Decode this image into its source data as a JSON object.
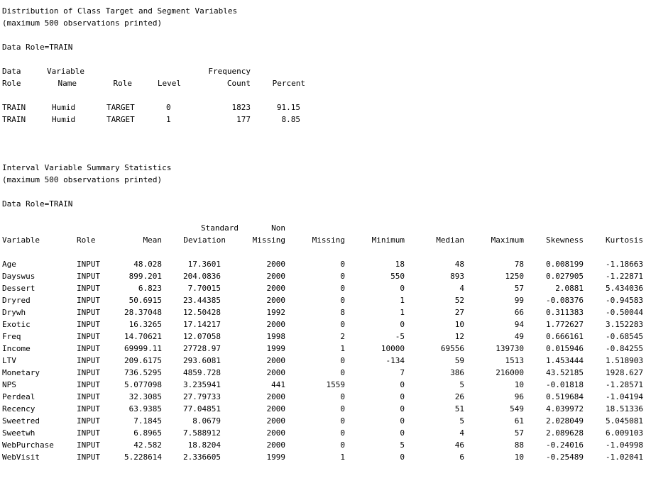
{
  "section1": {
    "title": "Distribution of Class Target and Segment Variables",
    "subtitle": "(maximum 500 observations printed)",
    "data_role": "Data Role=TRAIN",
    "headers_top": [
      "Data",
      "Variable",
      "Frequency"
    ],
    "headers": [
      "Role",
      "Name",
      "Role",
      "Level",
      "Count",
      "Percent"
    ],
    "rows": [
      [
        "TRAIN",
        "Humid",
        "TARGET",
        "0",
        "1823",
        "91.15"
      ],
      [
        "TRAIN",
        "Humid",
        "TARGET",
        "1",
        "177",
        "8.85"
      ]
    ]
  },
  "section2": {
    "title": "Interval Variable Summary Statistics",
    "subtitle": "(maximum 500 observations printed)",
    "data_role": "Data Role=TRAIN",
    "headers_top": [
      "Standard",
      "Non"
    ],
    "headers": [
      "Variable",
      "Role",
      "Mean",
      "Deviation",
      "Missing",
      "Missing",
      "Minimum",
      "Median",
      "Maximum",
      "Skewness",
      "Kurtosis"
    ],
    "rows": [
      [
        "Age",
        "INPUT",
        "48.028",
        "17.3601",
        "2000",
        "0",
        "18",
        "48",
        "78",
        "0.008199",
        "-1.18663"
      ],
      [
        "Dayswus",
        "INPUT",
        "899.201",
        "204.0836",
        "2000",
        "0",
        "550",
        "893",
        "1250",
        "0.027905",
        "-1.22871"
      ],
      [
        "Dessert",
        "INPUT",
        "6.823",
        "7.70015",
        "2000",
        "0",
        "0",
        "4",
        "57",
        "2.0881",
        "5.434036"
      ],
      [
        "Dryred",
        "INPUT",
        "50.6915",
        "23.44385",
        "2000",
        "0",
        "1",
        "52",
        "99",
        "-0.08376",
        "-0.94583"
      ],
      [
        "Drywh",
        "INPUT",
        "28.37048",
        "12.50428",
        "1992",
        "8",
        "1",
        "27",
        "66",
        "0.311383",
        "-0.50044"
      ],
      [
        "Exotic",
        "INPUT",
        "16.3265",
        "17.14217",
        "2000",
        "0",
        "0",
        "10",
        "94",
        "1.772627",
        "3.152283"
      ],
      [
        "Freq",
        "INPUT",
        "14.70621",
        "12.07058",
        "1998",
        "2",
        "-5",
        "12",
        "49",
        "0.666161",
        "-0.68545"
      ],
      [
        "Income",
        "INPUT",
        "69999.11",
        "27728.97",
        "1999",
        "1",
        "10000",
        "69556",
        "139730",
        "0.015946",
        "-0.84255"
      ],
      [
        "LTV",
        "INPUT",
        "209.6175",
        "293.6081",
        "2000",
        "0",
        "-134",
        "59",
        "1513",
        "1.453444",
        "1.518903"
      ],
      [
        "Monetary",
        "INPUT",
        "736.5295",
        "4859.728",
        "2000",
        "0",
        "7",
        "386",
        "216000",
        "43.52185",
        "1928.627"
      ],
      [
        "NPS",
        "INPUT",
        "5.077098",
        "3.235941",
        "441",
        "1559",
        "0",
        "5",
        "10",
        "-0.01818",
        "-1.28571"
      ],
      [
        "Perdeal",
        "INPUT",
        "32.3085",
        "27.79733",
        "2000",
        "0",
        "0",
        "26",
        "96",
        "0.519684",
        "-1.04194"
      ],
      [
        "Recency",
        "INPUT",
        "63.9385",
        "77.04851",
        "2000",
        "0",
        "0",
        "51",
        "549",
        "4.039972",
        "18.51336"
      ],
      [
        "Sweetred",
        "INPUT",
        "7.1845",
        "8.0679",
        "2000",
        "0",
        "0",
        "5",
        "61",
        "2.028049",
        "5.045081"
      ],
      [
        "Sweetwh",
        "INPUT",
        "6.8965",
        "7.588912",
        "2000",
        "0",
        "0",
        "4",
        "57",
        "2.089628",
        "6.009103"
      ],
      [
        "WebPurchase",
        "INPUT",
        "42.582",
        "18.8204",
        "2000",
        "0",
        "5",
        "46",
        "88",
        "-0.24016",
        "-1.04998"
      ],
      [
        "WebVisit",
        "INPUT",
        "5.228614",
        "2.336605",
        "1999",
        "1",
        "0",
        "6",
        "10",
        "-0.25489",
        "-1.02041"
      ]
    ]
  }
}
